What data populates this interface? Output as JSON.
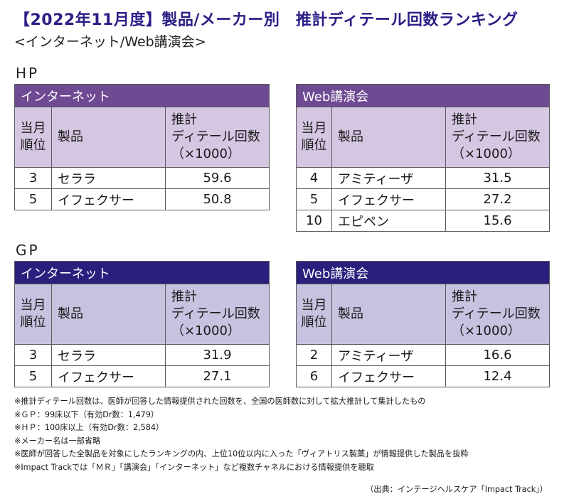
{
  "title": "【2022年11月度】製品/メーカー別　推計ディテール回数ランキング",
  "subtitle": "<インターネット/Web講演会>",
  "columns": {
    "rank_line1": "当月",
    "rank_line2": "順位",
    "product": "製品",
    "value_line1": "推計",
    "value_line2": "ディテール回数",
    "value_line3": "（×1000）"
  },
  "sections": [
    {
      "label": "HP",
      "tables": [
        {
          "channel": "インターネット",
          "rows": [
            {
              "rank": "3",
              "product": "セララ",
              "value": "59.6"
            },
            {
              "rank": "5",
              "product": "イフェクサー",
              "value": "50.8"
            }
          ]
        },
        {
          "channel": "Web講演会",
          "rows": [
            {
              "rank": "4",
              "product": "アミティーザ",
              "value": "31.5"
            },
            {
              "rank": "5",
              "product": "イフェクサー",
              "value": "27.2"
            },
            {
              "rank": "10",
              "product": "エピペン",
              "value": "15.6"
            }
          ]
        }
      ]
    },
    {
      "label": "GP",
      "tables": [
        {
          "channel": "インターネット",
          "rows": [
            {
              "rank": "3",
              "product": "セララ",
              "value": "31.9"
            },
            {
              "rank": "5",
              "product": "イフェクサー",
              "value": "27.1"
            }
          ]
        },
        {
          "channel": "Web講演会",
          "rows": [
            {
              "rank": "2",
              "product": "アミティーザ",
              "value": "16.6"
            },
            {
              "rank": "6",
              "product": "イフェクサー",
              "value": "12.4"
            }
          ]
        }
      ]
    }
  ],
  "colors": {
    "title": "#2a1e86",
    "hp_header": "#6e4a93",
    "hp_subheader": "#d5c7e2",
    "gp_header": "#2b1f7e",
    "gp_subheader": "#c5c3e0"
  },
  "notes": [
    "※推計ディテール回数は、医師が回答した情報提供された回数を、全国の医師数に対して拡大推計して集計したもの",
    "※ＧＰ：99床以下（有効Dr数：1,479）",
    "※ＨＰ：100床以上（有効Dr数：2,584）",
    "※メーカー名は一部省略",
    "※医師が回答した全製品を対象にしたランキングの内、上位10位以内に入った「ヴィアトリス製薬」が情報提供した製品を抜粋",
    "※Impact Trackでは「ＭＲ」「講演会」「インターネット」など複数チャネルにおける情報提供を聴取"
  ],
  "source": "（出典：インテージヘルスケア「Impact Track」）"
}
